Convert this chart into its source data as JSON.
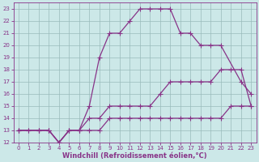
{
  "xlabel": "Windchill (Refroidissement éolien,°C)",
  "bg_color": "#cce8e8",
  "line_color": "#883388",
  "grid_color": "#99bbbb",
  "xlim": [
    -0.5,
    23.5
  ],
  "ylim": [
    12,
    23.5
  ],
  "yticks": [
    12,
    13,
    14,
    15,
    16,
    17,
    18,
    19,
    20,
    21,
    22,
    23
  ],
  "xticks": [
    0,
    1,
    2,
    3,
    4,
    5,
    6,
    7,
    8,
    9,
    10,
    11,
    12,
    13,
    14,
    15,
    16,
    17,
    18,
    19,
    20,
    21,
    22,
    23
  ],
  "line1_x": [
    0,
    1,
    2,
    3,
    4,
    5,
    6,
    7,
    8,
    9,
    10,
    11,
    12,
    13,
    14,
    15,
    16,
    17,
    18,
    19,
    20,
    21,
    22,
    23
  ],
  "line1_y": [
    13,
    13,
    13,
    13,
    12,
    13,
    13,
    13,
    13,
    14,
    14,
    14,
    14,
    14,
    14,
    14,
    14,
    14,
    14,
    14,
    14,
    15,
    15,
    15
  ],
  "line2_x": [
    0,
    2,
    3,
    4,
    5,
    6,
    7,
    8,
    9,
    10,
    11,
    12,
    13,
    14,
    15,
    16,
    17,
    18,
    19,
    20,
    21,
    22,
    23
  ],
  "line2_y": [
    13,
    13,
    13,
    12,
    13,
    13,
    14,
    14,
    15,
    15,
    15,
    15,
    15,
    16,
    17,
    17,
    17,
    17,
    17,
    18,
    18,
    18,
    15
  ],
  "line3_x": [
    0,
    1,
    2,
    3,
    4,
    5,
    6,
    7,
    8,
    9,
    10,
    11,
    12,
    13,
    14,
    15,
    16,
    17,
    18,
    19,
    20,
    22,
    23
  ],
  "line3_y": [
    13,
    13,
    13,
    13,
    12,
    13,
    13,
    15,
    19,
    21,
    21,
    22,
    23,
    23,
    23,
    23,
    21,
    21,
    20,
    20,
    20,
    17,
    16
  ],
  "marker": "+",
  "markersize": 4,
  "linewidth": 0.9,
  "tick_fontsize": 5,
  "xlabel_fontsize": 6
}
